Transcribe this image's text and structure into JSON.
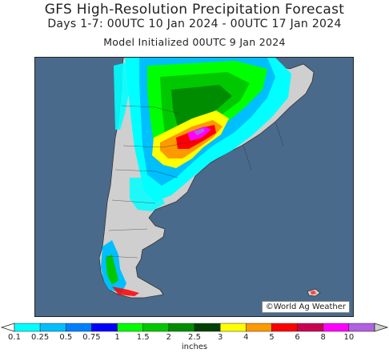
{
  "header": {
    "title": "GFS High-Resolution Precipitation Forecast",
    "subtitle": "Days 1-7: 00UTC 10 Jan 2024 - 00UTC 17 Jan 2024",
    "model_init": "Model Initialized 00UTC 9 Jan 2024"
  },
  "map": {
    "credit": "©World Ag Weather",
    "colors": {
      "ocean": "#4a6a8c",
      "land": "#cfcfcf",
      "border": "#333333"
    }
  },
  "legend": {
    "units_label": "inches",
    "ticks": [
      "0.1",
      "0.25",
      "0.5",
      "0.75",
      "1",
      "1.5",
      "2",
      "2.5",
      "3",
      "4",
      "5",
      "6",
      "8",
      "10"
    ],
    "colors": [
      "#00ffff",
      "#00bfff",
      "#0080ff",
      "#0000ff",
      "#00ff00",
      "#00c800",
      "#008c00",
      "#004000",
      "#ffff00",
      "#ff9900",
      "#ff0000",
      "#c80050",
      "#ff00ff",
      "#b060e0"
    ]
  }
}
